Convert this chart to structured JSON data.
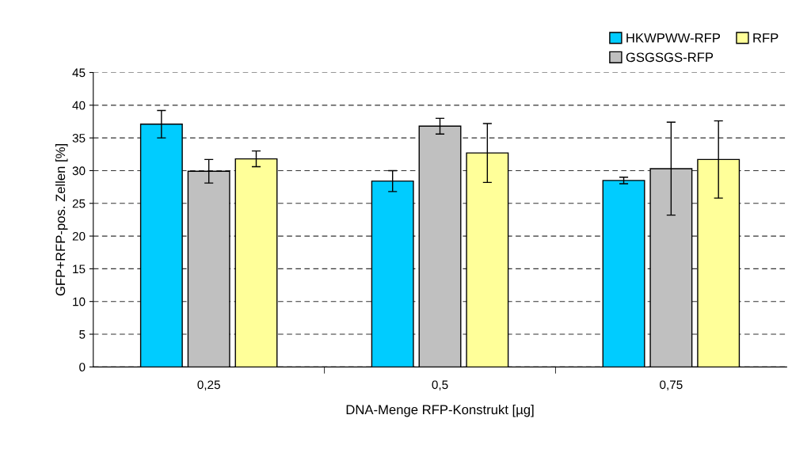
{
  "chart_data": {
    "type": "bar",
    "xlabel": "DNA-Menge RFP-Konstrukt [µg]",
    "ylabel": "GFP+RFP-pos. Zellen [%]",
    "categories": [
      "0,25",
      "0,5",
      "0,75"
    ],
    "series": [
      {
        "name": "HKWPWW-RFP",
        "color": "#00ccff",
        "values": [
          37.1,
          28.4,
          28.5
        ],
        "errors": [
          2.1,
          1.6,
          0.5
        ]
      },
      {
        "name": "GSGSGS-RFP",
        "color": "#c0c0c0",
        "values": [
          29.9,
          36.8,
          30.3
        ],
        "errors": [
          1.8,
          1.2,
          7.1
        ]
      },
      {
        "name": "RFP",
        "color": "#ffff99",
        "values": [
          31.8,
          32.7,
          31.7
        ],
        "errors": [
          1.2,
          4.5,
          5.9
        ]
      }
    ],
    "ylim": [
      0,
      45
    ],
    "yticks": [
      0,
      5,
      10,
      15,
      20,
      25,
      30,
      35,
      40,
      45
    ],
    "grid": "y",
    "legend": "top right"
  }
}
